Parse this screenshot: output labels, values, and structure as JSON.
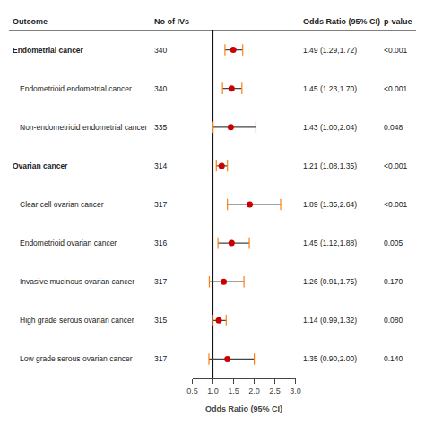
{
  "chart_data": {
    "type": "forest",
    "xlabel": "Odds Ratio (95% CI)",
    "category_header": "Outcome",
    "categories": [
      "Endometrial cancer",
      "Endometrioid endometrial cancer",
      "Non-endometrioid endometrial cancer",
      "Ovarian cancer",
      "Clear cell ovarian cancer",
      "Endometrioid ovarian cancer",
      "Invasive mucinous ovarian cancer",
      "High grade serous ovarian cancer",
      "Low grade serous ovarian cancer"
    ],
    "indent": [
      false,
      true,
      true,
      false,
      true,
      true,
      true,
      true,
      true
    ],
    "values": [
      1.49,
      1.45,
      1.43,
      1.21,
      1.89,
      1.45,
      1.26,
      1.14,
      1.35
    ],
    "ci_lo": [
      1.29,
      1.23,
      1.0,
      1.08,
      1.35,
      1.12,
      0.91,
      0.99,
      0.9
    ],
    "ci_hi": [
      1.72,
      1.7,
      2.04,
      1.35,
      2.64,
      1.88,
      1.75,
      1.32,
      2.0
    ],
    "columns": [
      {
        "header": "No of IVs",
        "values": [
          "340",
          "340",
          "335",
          "314",
          "317",
          "316",
          "317",
          "315",
          "317"
        ]
      },
      {
        "header": "Odds Ratio (95% CI)",
        "values": [
          "1.49 (1.29,1.72)",
          "1.45 (1.23,1.70)",
          "1.43 (1.00,2.04)",
          "1.21 (1.08,1.35)",
          "1.89 (1.35,2.64)",
          "1.45 (1.12,1.88)",
          "1.26 (0.91,1.75)",
          "1.14 (0.99,1.32)",
          "1.35 (0.90,2.00)"
        ]
      },
      {
        "header": "p-value",
        "values": [
          "<0.001",
          "<0.001",
          "0.048",
          "<0.001",
          "<0.001",
          "0.005",
          "0.170",
          "0.080",
          "0.140"
        ]
      }
    ],
    "ref_line": 1.0,
    "color": "#cc0000",
    "xlim": [
      0.5,
      3.0
    ],
    "xticks": [
      0.5,
      {
        "value": 1.0,
        "label": "1.0"
      },
      1.5,
      {
        "value": 2.0,
        "label": "2.0"
      },
      2.5,
      {
        "value": 3.0,
        "label": "3.0"
      }
    ],
    "grid": false
  }
}
